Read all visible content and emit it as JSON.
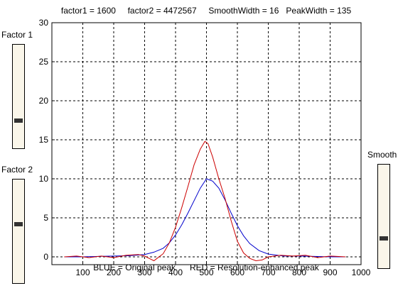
{
  "sliders": [
    {
      "label": "Factor 1",
      "level": 0.74
    },
    {
      "label": "Factor 2",
      "level": 0.43
    },
    {
      "label": "Smooth",
      "level": 0.72
    }
  ],
  "chart_data": {
    "type": "line",
    "title": "factor1 = 1600     factor2 = 4472567     SmoothWidth = 16   PeakWidth = 135",
    "xlabel": "BLUE = Original peak      RED = Resolution-enhanced peak",
    "ylabel": "",
    "xlim": [
      0,
      1000
    ],
    "ylim": [
      -1,
      30
    ],
    "xticks": [
      100,
      200,
      300,
      400,
      500,
      600,
      700,
      800,
      900,
      1000
    ],
    "yticks": [
      0,
      5,
      10,
      15,
      20,
      25,
      30
    ],
    "grid": true,
    "series": [
      {
        "color": "#0000cc",
        "x": [
          40,
          100,
          150,
          200,
          250,
          300,
          330,
          360,
          380,
          400,
          420,
          440,
          460,
          480,
          500,
          520,
          540,
          560,
          580,
          600,
          620,
          640,
          670,
          700,
          750,
          800,
          850,
          900,
          950
        ],
        "y": [
          0,
          0,
          0.05,
          0.1,
          0.15,
          0.3,
          0.6,
          1.1,
          1.8,
          2.8,
          4.1,
          5.6,
          7.2,
          8.8,
          10,
          9.7,
          8.8,
          7.3,
          5.6,
          4.0,
          2.7,
          1.7,
          0.8,
          0.35,
          0.1,
          0.1,
          0.05,
          0,
          0
        ]
      },
      {
        "color": "#cc0000",
        "x": [
          40,
          80,
          120,
          160,
          200,
          240,
          280,
          300,
          320,
          330,
          340,
          360,
          380,
          400,
          420,
          440,
          460,
          480,
          495,
          505,
          520,
          540,
          560,
          580,
          600,
          620,
          640,
          660,
          680,
          700,
          740,
          780,
          820,
          860,
          900,
          950
        ],
        "y": [
          0,
          0.1,
          -0.1,
          0.1,
          -0.1,
          0.2,
          0.3,
          0.1,
          -0.3,
          -0.5,
          -0.2,
          0.4,
          1.8,
          3.8,
          6.3,
          9.0,
          11.8,
          13.8,
          14.8,
          14.5,
          12.8,
          10.0,
          7.5,
          4.6,
          2.0,
          0.5,
          -0.2,
          -0.5,
          -0.4,
          0,
          0.2,
          0.1,
          0.2,
          -0.1,
          0.1,
          0
        ]
      }
    ]
  }
}
